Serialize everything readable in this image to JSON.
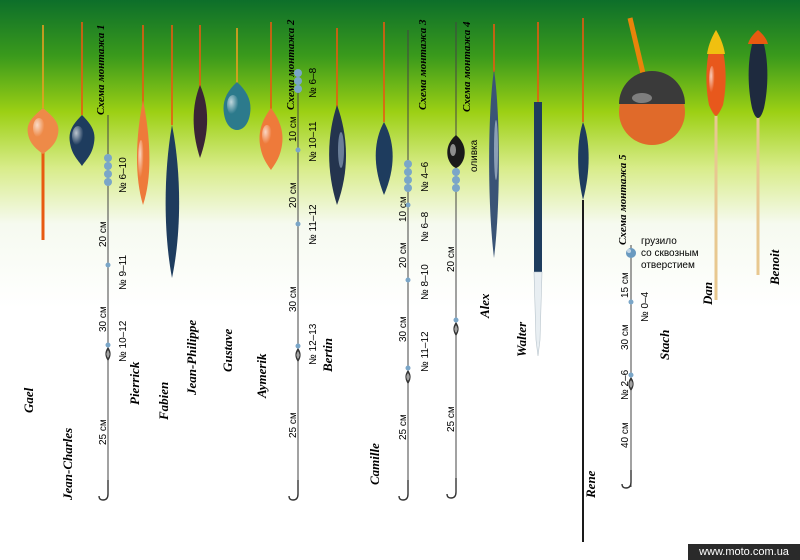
{
  "floats": [
    {
      "name": "Gael",
      "body": "#ee8a48"
    },
    {
      "name": "Jean-Charles",
      "body": "#1e3c5e"
    },
    {
      "name": "Pierrick",
      "body": "#ee7a3a"
    },
    {
      "name": "Fabien",
      "body": "#1e3c5e"
    },
    {
      "name": "Jean-Philippe",
      "body": "#3a2436"
    },
    {
      "name": "Gustave",
      "body": "#2c7a8c"
    },
    {
      "name": "Aymerik",
      "body": "#ee7a3a"
    },
    {
      "name": "Bertin",
      "body": "#24344e"
    },
    {
      "name": "Camille",
      "body": "#1e3c5e"
    },
    {
      "name": "Alex",
      "body": "#3a5476"
    },
    {
      "name": "Walter",
      "body": "#1e3c5e"
    },
    {
      "name": "Rene",
      "body": "#1e3c5e"
    },
    {
      "name": "Stach",
      "body": "#e06a2a"
    },
    {
      "name": "Dan",
      "body": "#e8581c"
    },
    {
      "name": "Benoit",
      "body": "#1e2a3e"
    }
  ],
  "schemes": [
    {
      "title": "Схема монтажа 1",
      "labels": [
        "№ 6–10",
        "20 см",
        "№ 9–11",
        "30 см",
        "№ 10–12",
        "25 см"
      ]
    },
    {
      "title": "Схема монтажа 2",
      "labels": [
        "№ 6–8",
        "10 см",
        "№ 10–11",
        "20 см",
        "№ 11–12",
        "30 см",
        "№ 12–13",
        "25 см"
      ]
    },
    {
      "title": "Схема монтажа 3",
      "labels": [
        "10 см",
        "№ 4–6",
        "№ 6–8",
        "20 см",
        "№ 8–10",
        "30 см",
        "№ 11–12",
        "25 см"
      ]
    },
    {
      "title": "Схема монтажа 4",
      "labels": [
        "оливка",
        "20 см",
        "25 см"
      ]
    },
    {
      "title": "Схема монтажа 5",
      "labels": [
        "грузило",
        "со сквозным",
        "отверстием",
        "15 см",
        "№ 0–4",
        "30 см",
        "№ 2–6",
        "40 см"
      ]
    }
  ],
  "watermark": "www.moto.com.ua"
}
